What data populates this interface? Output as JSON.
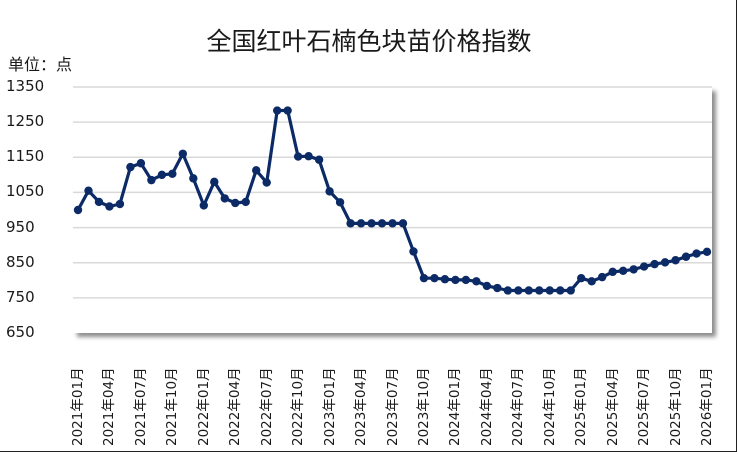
{
  "chart_data": {
    "type": "line",
    "title": "全国红叶石楠色块苗价格指数",
    "unit_label": "单位：点",
    "xlabel": "",
    "ylabel": "单位：点",
    "ylim": [
      650,
      1350
    ],
    "yticks": [
      1350,
      1250,
      1150,
      1050,
      950,
      850,
      750,
      650
    ],
    "grid": true,
    "legend": "none",
    "xtick_labels": [
      "2021年01月",
      "2021年04月",
      "2021年07月",
      "2021年10月",
      "2022年01月",
      "2022年04月",
      "2022年07月",
      "2022年10月",
      "2023年01月",
      "2023年04月",
      "2023年07月",
      "2023年10月",
      "2024年01月",
      "2024年04月",
      "2024年07月",
      "2024年10月",
      "2025年01月",
      "2025年04月",
      "2025年07月",
      "2025年10月",
      "2026年01月"
    ],
    "x": [
      "2021-01",
      "2021-02",
      "2021-03",
      "2021-04",
      "2021-05",
      "2021-06",
      "2021-07",
      "2021-08",
      "2021-09",
      "2021-10",
      "2021-11",
      "2021-12",
      "2022-01",
      "2022-02",
      "2022-03",
      "2022-04",
      "2022-05",
      "2022-06",
      "2022-07",
      "2022-08",
      "2022-09",
      "2022-10",
      "2022-11",
      "2022-12",
      "2023-01",
      "2023-02",
      "2023-03",
      "2023-04",
      "2023-05",
      "2023-06",
      "2023-07",
      "2023-08",
      "2023-09",
      "2023-10",
      "2023-11",
      "2023-12",
      "2024-01",
      "2024-02",
      "2024-03",
      "2024-04",
      "2024-05",
      "2024-06",
      "2024-07",
      "2024-08",
      "2024-09",
      "2024-10",
      "2024-11",
      "2024-12",
      "2025-01",
      "2025-02",
      "2025-03",
      "2025-04",
      "2025-05",
      "2025-06",
      "2025-07",
      "2025-08",
      "2025-09",
      "2025-10",
      "2025-11",
      "2025-12",
      "2026-01"
    ],
    "series": [
      {
        "name": "全国红叶石楠色块苗价格指数",
        "color": "#0b2a66",
        "values": [
          1000,
          1055,
          1023,
          1010,
          1017,
          1122,
          1133,
          1085,
          1100,
          1103,
          1160,
          1090,
          1013,
          1080,
          1033,
          1020,
          1023,
          1113,
          1078,
          1283,
          1283,
          1152,
          1153,
          1143,
          1053,
          1022,
          962,
          962,
          962,
          962,
          962,
          962,
          882,
          806,
          806,
          803,
          801,
          801,
          797,
          784,
          778,
          771,
          771,
          771,
          771,
          771,
          771,
          771,
          806,
          797,
          809,
          824,
          827,
          831,
          839,
          846,
          851,
          857,
          867,
          876,
          881
        ]
      }
    ]
  },
  "colors": {
    "line": "#0b2a66",
    "grid": "#d9d9d9",
    "text": "#1a1a1a"
  }
}
